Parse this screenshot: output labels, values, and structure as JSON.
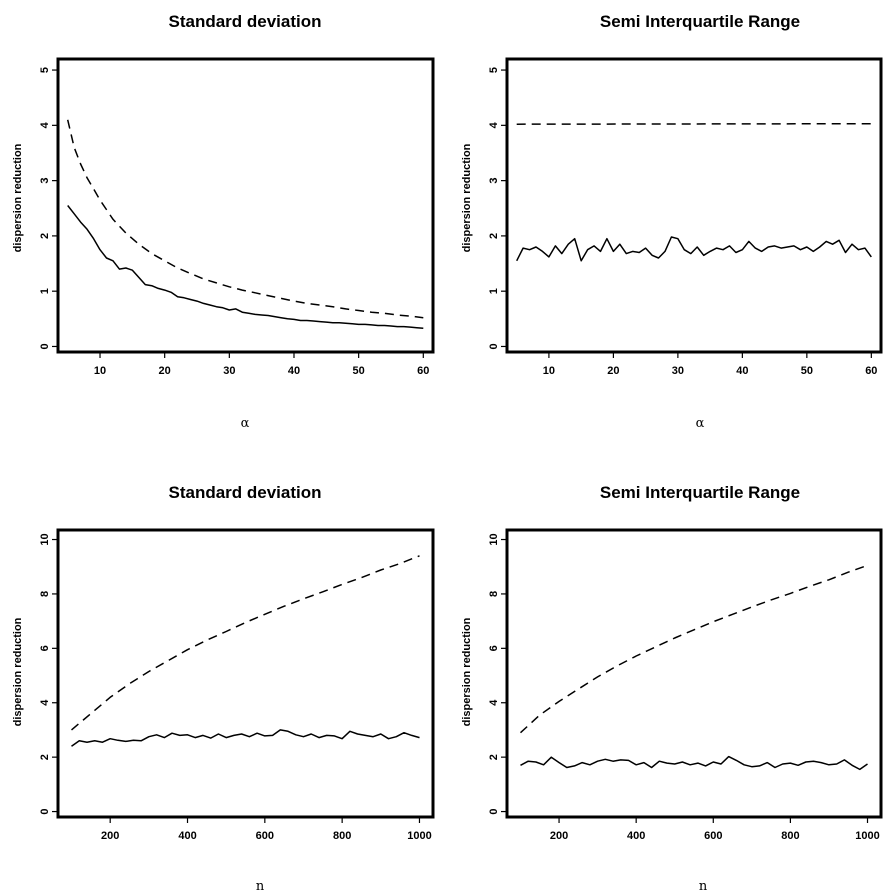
{
  "chart_data": [
    {
      "type": "line",
      "title": "Standard deviation",
      "xlabel": "α",
      "ylabel": "dispersion reduction",
      "xlim": [
        3.5,
        61.5
      ],
      "ylim": [
        -0.1,
        5.2
      ],
      "xticks": [
        10,
        20,
        30,
        40,
        50,
        60
      ],
      "yticks": [
        0,
        1,
        2,
        3,
        4,
        5
      ],
      "grid": false,
      "series": [
        {
          "style": "solid",
          "x": [
            5,
            6,
            7,
            8,
            9,
            10,
            11,
            12,
            13,
            14,
            15,
            16,
            17,
            18,
            19,
            20,
            21,
            22,
            23,
            24,
            25,
            26,
            27,
            28,
            29,
            30,
            31,
            32,
            33,
            34,
            35,
            36,
            37,
            38,
            39,
            40,
            41,
            42,
            43,
            44,
            45,
            46,
            47,
            48,
            49,
            50,
            51,
            52,
            53,
            54,
            55,
            56,
            57,
            58,
            59,
            60
          ],
          "values": [
            2.55,
            2.4,
            2.25,
            2.12,
            1.95,
            1.75,
            1.6,
            1.55,
            1.4,
            1.42,
            1.38,
            1.25,
            1.12,
            1.1,
            1.05,
            1.02,
            0.98,
            0.9,
            0.88,
            0.85,
            0.82,
            0.78,
            0.75,
            0.72,
            0.7,
            0.66,
            0.68,
            0.62,
            0.6,
            0.58,
            0.57,
            0.56,
            0.54,
            0.52,
            0.5,
            0.49,
            0.47,
            0.47,
            0.46,
            0.45,
            0.44,
            0.43,
            0.43,
            0.42,
            0.41,
            0.4,
            0.4,
            0.39,
            0.38,
            0.38,
            0.37,
            0.36,
            0.36,
            0.35,
            0.34,
            0.33
          ]
        },
        {
          "style": "dashed",
          "x": [
            5,
            6,
            7,
            8,
            9,
            10,
            12,
            14,
            16,
            18,
            20,
            22,
            24,
            26,
            28,
            30,
            32,
            34,
            36,
            38,
            40,
            42,
            44,
            46,
            48,
            50,
            52,
            54,
            56,
            58,
            60
          ],
          "values": [
            4.1,
            3.6,
            3.3,
            3.05,
            2.85,
            2.65,
            2.3,
            2.05,
            1.85,
            1.68,
            1.55,
            1.42,
            1.32,
            1.22,
            1.15,
            1.08,
            1.02,
            0.97,
            0.92,
            0.87,
            0.82,
            0.78,
            0.75,
            0.72,
            0.68,
            0.65,
            0.62,
            0.6,
            0.57,
            0.55,
            0.52
          ]
        }
      ]
    },
    {
      "type": "line",
      "title": "Semi Interquartile Range",
      "xlabel": "α",
      "ylabel": "dispersion reduction",
      "xlim": [
        3.5,
        61.5
      ],
      "ylim": [
        -0.1,
        5.2
      ],
      "xticks": [
        10,
        20,
        30,
        40,
        50,
        60
      ],
      "yticks": [
        0,
        1,
        2,
        3,
        4,
        5
      ],
      "grid": false,
      "series": [
        {
          "style": "solid",
          "x": [
            5,
            6,
            7,
            8,
            9,
            10,
            11,
            12,
            13,
            14,
            15,
            16,
            17,
            18,
            19,
            20,
            21,
            22,
            23,
            24,
            25,
            26,
            27,
            28,
            29,
            30,
            31,
            32,
            33,
            34,
            35,
            36,
            37,
            38,
            39,
            40,
            41,
            42,
            43,
            44,
            45,
            46,
            47,
            48,
            49,
            50,
            51,
            52,
            53,
            54,
            55,
            56,
            57,
            58,
            59,
            60
          ],
          "values": [
            1.55,
            1.78,
            1.75,
            1.8,
            1.72,
            1.62,
            1.82,
            1.68,
            1.85,
            1.95,
            1.55,
            1.75,
            1.82,
            1.72,
            1.95,
            1.72,
            1.85,
            1.68,
            1.72,
            1.7,
            1.78,
            1.65,
            1.6,
            1.72,
            1.98,
            1.95,
            1.75,
            1.68,
            1.8,
            1.65,
            1.72,
            1.78,
            1.75,
            1.82,
            1.7,
            1.75,
            1.9,
            1.78,
            1.72,
            1.8,
            1.82,
            1.78,
            1.8,
            1.82,
            1.75,
            1.8,
            1.72,
            1.8,
            1.9,
            1.85,
            1.92,
            1.7,
            1.85,
            1.75,
            1.78,
            1.62
          ]
        },
        {
          "style": "dashed",
          "x": [
            5,
            60
          ],
          "values": [
            4.02,
            4.03
          ]
        }
      ]
    },
    {
      "type": "line",
      "title": "Standard deviation",
      "xlabel": "n",
      "ylabel": "dispersion reduction",
      "xlim": [
        65,
        1035
      ],
      "ylim": [
        -0.2,
        10.35
      ],
      "xticks": [
        200,
        400,
        600,
        800,
        1000
      ],
      "yticks": [
        0,
        2,
        4,
        6,
        8,
        10
      ],
      "grid": false,
      "series": [
        {
          "style": "solid",
          "x": [
            100,
            120,
            140,
            160,
            180,
            200,
            220,
            240,
            260,
            280,
            300,
            320,
            340,
            360,
            380,
            400,
            420,
            440,
            460,
            480,
            500,
            520,
            540,
            560,
            580,
            600,
            620,
            640,
            660,
            680,
            700,
            720,
            740,
            760,
            780,
            800,
            820,
            840,
            860,
            880,
            900,
            920,
            940,
            960,
            980,
            1000
          ],
          "values": [
            2.4,
            2.6,
            2.55,
            2.6,
            2.55,
            2.68,
            2.62,
            2.58,
            2.62,
            2.6,
            2.75,
            2.82,
            2.72,
            2.88,
            2.8,
            2.82,
            2.72,
            2.8,
            2.7,
            2.85,
            2.72,
            2.8,
            2.85,
            2.75,
            2.88,
            2.78,
            2.8,
            3.0,
            2.95,
            2.82,
            2.75,
            2.85,
            2.72,
            2.8,
            2.78,
            2.68,
            2.95,
            2.85,
            2.8,
            2.75,
            2.85,
            2.68,
            2.75,
            2.9,
            2.8,
            2.72
          ]
        },
        {
          "style": "dashed",
          "x": [
            100,
            150,
            200,
            250,
            300,
            350,
            400,
            450,
            500,
            550,
            600,
            650,
            700,
            750,
            800,
            850,
            900,
            950,
            1000
          ],
          "values": [
            3.0,
            3.6,
            4.2,
            4.7,
            5.15,
            5.55,
            5.95,
            6.3,
            6.62,
            6.95,
            7.25,
            7.55,
            7.82,
            8.08,
            8.35,
            8.6,
            8.88,
            9.12,
            9.4
          ]
        }
      ]
    },
    {
      "type": "line",
      "title": "Semi Interquartile Range",
      "xlabel": "n",
      "ylabel": "dispersion reduction",
      "xlim": [
        65,
        1035
      ],
      "ylim": [
        -0.2,
        10.35
      ],
      "xticks": [
        200,
        400,
        600,
        800,
        1000
      ],
      "yticks": [
        0,
        2,
        4,
        6,
        8,
        10
      ],
      "grid": false,
      "series": [
        {
          "style": "solid",
          "x": [
            100,
            120,
            140,
            160,
            180,
            200,
            220,
            240,
            260,
            280,
            300,
            320,
            340,
            360,
            380,
            400,
            420,
            440,
            460,
            480,
            500,
            520,
            540,
            560,
            580,
            600,
            620,
            640,
            660,
            680,
            700,
            720,
            740,
            760,
            780,
            800,
            820,
            840,
            860,
            880,
            900,
            920,
            940,
            960,
            980,
            1000
          ],
          "values": [
            1.7,
            1.85,
            1.82,
            1.72,
            2.0,
            1.8,
            1.62,
            1.68,
            1.8,
            1.72,
            1.85,
            1.92,
            1.85,
            1.9,
            1.88,
            1.72,
            1.8,
            1.62,
            1.85,
            1.78,
            1.75,
            1.82,
            1.72,
            1.78,
            1.68,
            1.82,
            1.75,
            2.02,
            1.88,
            1.72,
            1.65,
            1.68,
            1.8,
            1.62,
            1.75,
            1.78,
            1.7,
            1.82,
            1.85,
            1.8,
            1.72,
            1.75,
            1.9,
            1.7,
            1.55,
            1.75
          ]
        },
        {
          "style": "dashed",
          "x": [
            100,
            150,
            200,
            250,
            300,
            350,
            400,
            450,
            500,
            550,
            600,
            650,
            700,
            750,
            800,
            850,
            900,
            950,
            1000
          ],
          "values": [
            2.9,
            3.55,
            4.05,
            4.5,
            4.95,
            5.35,
            5.72,
            6.05,
            6.38,
            6.68,
            6.98,
            7.25,
            7.52,
            7.78,
            8.02,
            8.28,
            8.52,
            8.8,
            9.05
          ]
        }
      ]
    }
  ]
}
